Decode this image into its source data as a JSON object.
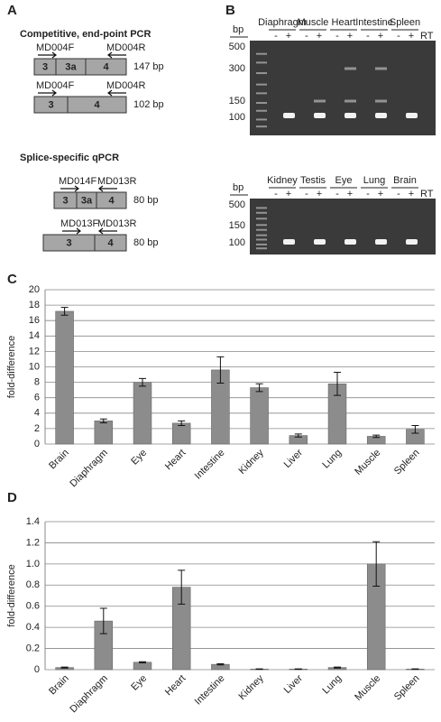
{
  "panel_a": {
    "label": "A",
    "sections": [
      {
        "title": "Competitive, end-point PCR",
        "constructs": [
          {
            "segments": [
              "3",
              "3a",
              "4"
            ],
            "primers": [
              {
                "name": "MD004F",
                "direction": "forward"
              },
              {
                "name": "MD004R",
                "direction": "reverse"
              }
            ],
            "size": "147 bp"
          },
          {
            "segments": [
              "3",
              "4"
            ],
            "primers": [
              {
                "name": "MD004F",
                "direction": "forward"
              },
              {
                "name": "MD004R",
                "direction": "reverse"
              }
            ],
            "size": "102 bp"
          }
        ]
      },
      {
        "title": "Splice-specific qPCR",
        "constructs": [
          {
            "segments": [
              "3",
              "3a",
              "4"
            ],
            "primers": [
              {
                "name": "MD014F",
                "direction": "forward"
              },
              {
                "name": "MD013R",
                "direction": "reverse"
              }
            ],
            "size": "80 bp"
          },
          {
            "segments": [
              "3",
              "4"
            ],
            "primers": [
              {
                "name": "MD013F",
                "direction": "forward"
              },
              {
                "name": "MD013R",
                "direction": "reverse"
              }
            ],
            "size": "80 bp"
          }
        ]
      }
    ]
  },
  "panel_b": {
    "label": "B",
    "gels": [
      {
        "unit": "bp",
        "markers": [
          500,
          300,
          150,
          100
        ],
        "lanes": [
          "Diaphragm",
          "Muscle",
          "Heart",
          "Intestine",
          "Spleen"
        ],
        "signs": [
          "-",
          "+"
        ],
        "rt": "RT"
      },
      {
        "unit": "bp",
        "markers": [
          500,
          150,
          100
        ],
        "lanes": [
          "Kidney",
          "Testis",
          "Eye",
          "Lung",
          "Brain"
        ],
        "signs": [
          "-",
          "+"
        ],
        "rt": "RT"
      }
    ]
  },
  "chart_data": [
    {
      "type": "bar",
      "panel_label": "C",
      "ylabel": "fold-difference",
      "color": "#8c8c8c",
      "grid": true,
      "categories": [
        "Brain",
        "Diaphragm",
        "Eye",
        "Heart",
        "Intestine",
        "Kidney",
        "Liver",
        "Lung",
        "Muscle",
        "Spleen"
      ],
      "values": [
        17.2,
        3.0,
        8.0,
        2.7,
        9.6,
        7.3,
        1.1,
        7.8,
        1.0,
        1.9
      ],
      "errors": [
        0.5,
        0.25,
        0.5,
        0.3,
        1.7,
        0.5,
        0.2,
        1.5,
        0.15,
        0.5
      ],
      "ylim": [
        0,
        20
      ],
      "yticks": [
        0,
        2,
        4,
        6,
        8,
        10,
        12,
        14,
        16,
        18,
        20
      ]
    },
    {
      "type": "bar",
      "panel_label": "D",
      "ylabel": "fold-difference",
      "color": "#8c8c8c",
      "grid": true,
      "categories": [
        "Brain",
        "Diaphragm",
        "Eye",
        "Heart",
        "Intestine",
        "Kidney",
        "Liver",
        "Lung",
        "Muscle",
        "Spleen"
      ],
      "values": [
        0.02,
        0.46,
        0.07,
        0.78,
        0.05,
        0.005,
        0.005,
        0.02,
        1.0,
        0.005
      ],
      "errors": [
        0.005,
        0.12,
        0.005,
        0.16,
        0.005,
        0.002,
        0.002,
        0.005,
        0.21,
        0.002
      ],
      "ylim": [
        0,
        1.4
      ],
      "yticks": [
        0,
        0.2,
        0.4,
        0.6,
        0.8,
        {
          "value": 1,
          "label": "1.0"
        },
        1.2,
        1.4
      ]
    }
  ]
}
